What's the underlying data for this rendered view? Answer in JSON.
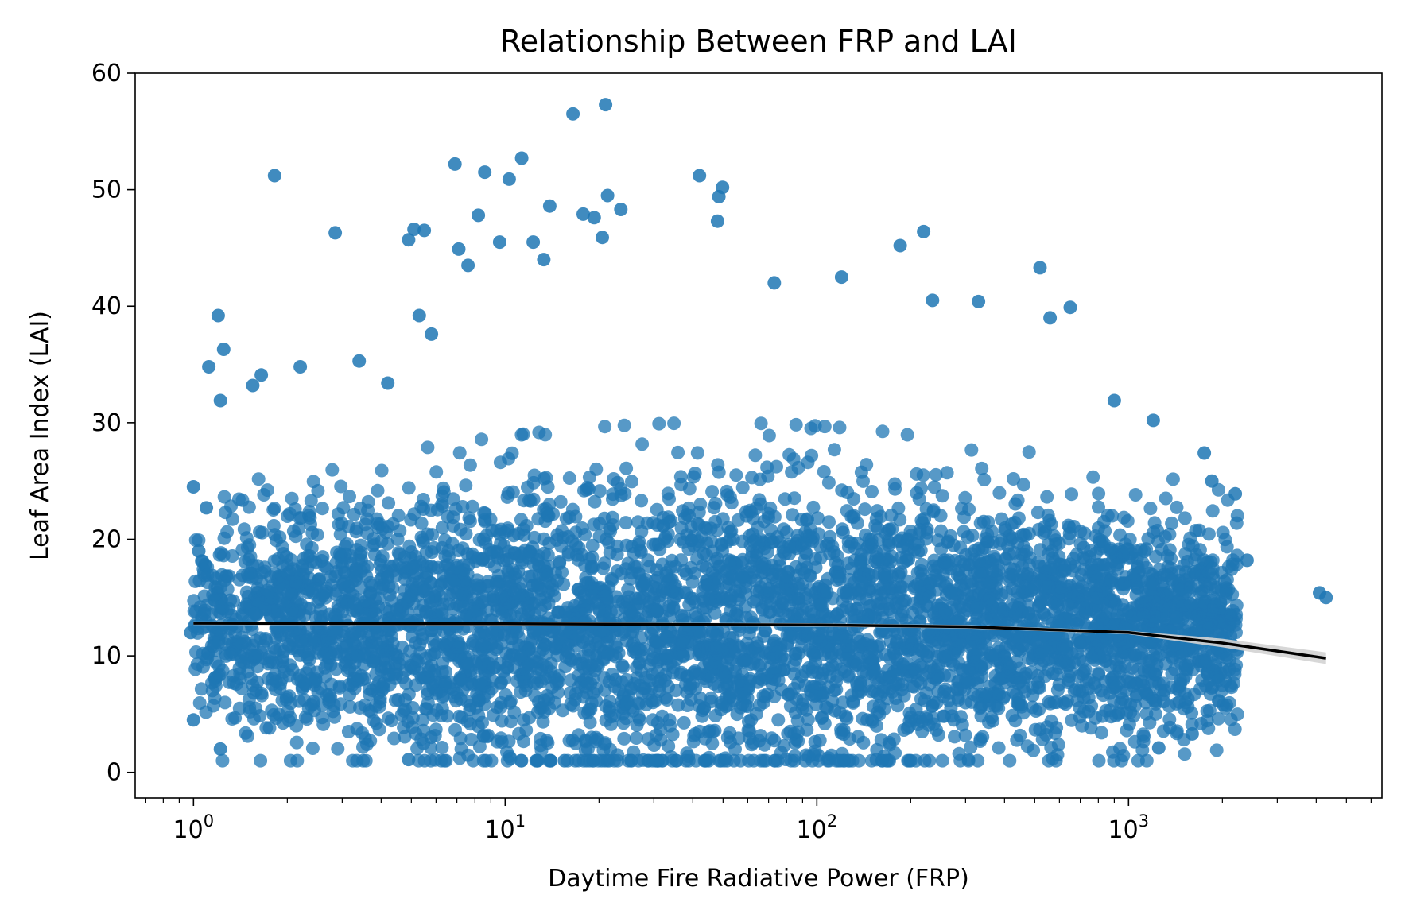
{
  "chart_data": {
    "type": "scatter",
    "title": "Relationship Between FRP and LAI",
    "xlabel": "Daytime Fire Radiative Power (FRP)",
    "ylabel": "Leaf Area Index (LAI)",
    "xscale": "log",
    "xlim": [
      0.65,
      6500
    ],
    "ylim": [
      -2.2,
      60
    ],
    "xticks": [
      {
        "value": 1,
        "base": "10",
        "exp": "0"
      },
      {
        "value": 10,
        "base": "10",
        "exp": "1"
      },
      {
        "value": 100,
        "base": "10",
        "exp": "2"
      },
      {
        "value": 1000,
        "base": "10",
        "exp": "3"
      }
    ],
    "yticks": [
      0,
      10,
      20,
      30,
      40,
      50,
      60
    ],
    "grid": false,
    "legend": "none",
    "colors": {
      "points": "#1f77b4",
      "fit_line": "#000000",
      "confidence_band": "#d3d3d3"
    },
    "series": [
      {
        "kind": "scatter",
        "points_note": "dense cloud; representative outliers listed",
        "points": [
          [
            1.0,
            24.5
          ],
          [
            1.0,
            4.5
          ],
          [
            1.04,
            19.0
          ],
          [
            1.1,
            22.7
          ],
          [
            1.12,
            34.8
          ],
          [
            1.2,
            39.2
          ],
          [
            1.22,
            31.9
          ],
          [
            1.22,
            2.0
          ],
          [
            1.25,
            36.3
          ],
          [
            1.55,
            33.2
          ],
          [
            1.65,
            34.1
          ],
          [
            1.82,
            51.2
          ],
          [
            2.2,
            34.8
          ],
          [
            2.85,
            46.3
          ],
          [
            3.4,
            35.3
          ],
          [
            4.2,
            33.4
          ],
          [
            4.9,
            45.7
          ],
          [
            5.1,
            46.6
          ],
          [
            5.3,
            39.2
          ],
          [
            5.5,
            46.5
          ],
          [
            5.8,
            37.6
          ],
          [
            6.9,
            52.2
          ],
          [
            7.1,
            44.9
          ],
          [
            7.6,
            43.5
          ],
          [
            8.2,
            47.8
          ],
          [
            8.6,
            51.5
          ],
          [
            9.6,
            45.5
          ],
          [
            10.3,
            50.9
          ],
          [
            11.3,
            52.7
          ],
          [
            12.3,
            45.5
          ],
          [
            13.3,
            44.0
          ],
          [
            13.9,
            48.6
          ],
          [
            16.5,
            56.5
          ],
          [
            17.8,
            47.9
          ],
          [
            19.3,
            47.6
          ],
          [
            20.5,
            45.9
          ],
          [
            21.0,
            57.3
          ],
          [
            21.3,
            49.5
          ],
          [
            23.5,
            48.3
          ],
          [
            42.0,
            51.2
          ],
          [
            48.5,
            49.4
          ],
          [
            49.8,
            50.2
          ],
          [
            48.0,
            47.3
          ],
          [
            73.0,
            42.0
          ],
          [
            120.0,
            42.5
          ],
          [
            185.0,
            45.2
          ],
          [
            220.0,
            46.4
          ],
          [
            235.0,
            40.5
          ],
          [
            330.0,
            40.4
          ],
          [
            520.0,
            43.3
          ],
          [
            560.0,
            39.0
          ],
          [
            650.0,
            39.9
          ],
          [
            900.0,
            31.9
          ],
          [
            1200.0,
            30.2
          ],
          [
            1750.0,
            27.4
          ],
          [
            1850.0,
            25.0
          ],
          [
            2200.0,
            23.9
          ],
          [
            4100.0,
            15.4
          ],
          [
            4300.0,
            15.0
          ],
          [
            1900.0,
            9.2
          ],
          [
            1250.0,
            2.1
          ],
          [
            1600.0,
            3.3
          ],
          [
            2400.0,
            18.2
          ],
          [
            200.0,
            1.0
          ],
          [
            15.5,
            1.0
          ],
          [
            4.9,
            1.1
          ],
          [
            0.98,
            12.0
          ]
        ]
      },
      {
        "kind": "fit_line",
        "x": [
          1.0,
          10.0,
          100.0,
          300.0,
          1000.0,
          2000.0,
          4300.0
        ],
        "y": [
          12.8,
          12.75,
          12.65,
          12.5,
          12.0,
          11.1,
          9.8
        ]
      }
    ]
  }
}
